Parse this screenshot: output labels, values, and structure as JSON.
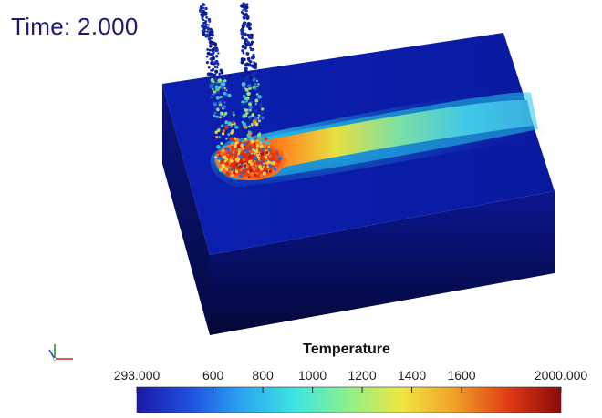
{
  "viewer": {
    "time_label": "Time: 2.000"
  },
  "color_legend": {
    "title": "Temperature",
    "min": 293.0,
    "max": 2000.0,
    "ticks": [
      "293.000",
      "600",
      "800",
      "1000",
      "1200",
      "1400",
      "1600",
      "2000.000"
    ],
    "tick_values": [
      293,
      600,
      800,
      1000,
      1200,
      1400,
      1600,
      2000
    ],
    "colormap": [
      "#1a1aa6",
      "#1f4fe0",
      "#2aa6f0",
      "#3ee6e0",
      "#8ef08a",
      "#f0e640",
      "#f0a028",
      "#e03c14",
      "#8b0a0a"
    ]
  },
  "scene": {
    "block_color": "#0a1a9e",
    "hot_color": "#c81e1e",
    "icons": [
      "orientation-axes-icon"
    ]
  }
}
